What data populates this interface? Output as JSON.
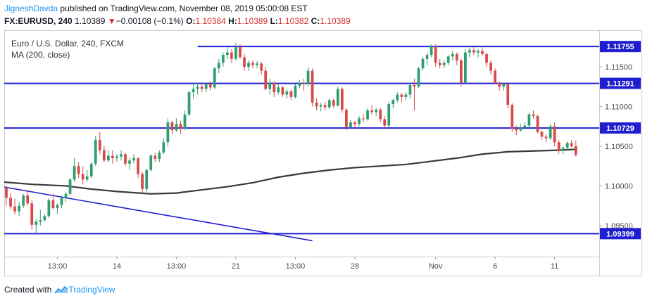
{
  "header": {
    "author": "JigneshDavda",
    "published_text": "published on TradingView.com, November 08, 2019 05:00:08 EST"
  },
  "quote": {
    "symbol": "FX:EURUSD, 240",
    "last": "1.10389",
    "arrow": "▼",
    "change": "−0.00108 (−0.1%)",
    "o_label": "O:",
    "o": "1.10384",
    "h_label": "H:",
    "h": "1.10389",
    "l_label": "L:",
    "l": "1.10382",
    "c_label": "C:",
    "c": "1.10389"
  },
  "legend": {
    "title": "Euro / U.S. Dollar, 240, FXCM",
    "indicator": "MA (200, close)"
  },
  "footer": {
    "created_with": "Created with",
    "brand": "TradingView"
  },
  "colors": {
    "up": "#2e9e6e",
    "down": "#d84a4a",
    "level": "#1f1fd1",
    "ma": "#3a3a3a",
    "text": "#131722",
    "accent": "#2196f3"
  },
  "chart_data": {
    "type": "candlestick",
    "ylim": [
      1.0911,
      1.1196
    ],
    "y_ticks": [
      "1.11500",
      "1.11000",
      "1.10500",
      "1.10000",
      "1.09500"
    ],
    "y_tick_values": [
      1.115,
      1.11,
      1.105,
      1.1,
      1.095
    ],
    "x_ticks": [
      "13:00",
      "14",
      "13:00",
      "21",
      "13:00",
      "28",
      "Nov",
      "6",
      "11"
    ],
    "x_tick_bars": [
      12,
      26,
      40,
      54,
      68,
      82,
      101,
      115,
      129
    ],
    "n_slots": 140,
    "levels": [
      {
        "value": 1.11755,
        "label": "1.11755",
        "from_bar": 45
      },
      {
        "value": 1.11291,
        "label": "1.11291",
        "from_bar": -1
      },
      {
        "value": 1.10729,
        "label": "1.10729",
        "from_bar": -1
      },
      {
        "value": 1.09399,
        "label": "1.09399",
        "from_bar": -1
      }
    ],
    "trendline": {
      "from": [
        -1,
        1.0999
      ],
      "to": [
        72,
        1.0931
      ]
    },
    "candles": [
      [
        1.0998,
        1.1,
        1.0975,
        1.0985
      ],
      [
        1.0985,
        1.0991,
        1.097,
        1.0974
      ],
      [
        1.0974,
        1.0984,
        1.0964,
        1.0968
      ],
      [
        1.0968,
        1.098,
        1.0962,
        1.0975
      ],
      [
        1.0975,
        1.099,
        1.0972,
        1.0988
      ],
      [
        1.0988,
        1.0995,
        1.0975,
        1.0978
      ],
      [
        1.0978,
        1.0982,
        1.0945,
        1.0951
      ],
      [
        1.0951,
        1.0958,
        1.094,
        1.0955
      ],
      [
        1.0955,
        1.097,
        1.095,
        1.0957
      ],
      [
        1.0957,
        1.0965,
        1.0955,
        1.0962
      ],
      [
        1.0962,
        1.0985,
        1.096,
        1.0982
      ],
      [
        1.0982,
        1.099,
        1.097,
        1.0972
      ],
      [
        1.0972,
        1.0978,
        1.0965,
        1.0976
      ],
      [
        1.0976,
        1.0988,
        1.0972,
        1.0985
      ],
      [
        1.0985,
        1.0992,
        1.098,
        1.099
      ],
      [
        1.099,
        1.101,
        1.0988,
        1.1008
      ],
      [
        1.1008,
        1.1035,
        1.1005,
        1.1025
      ],
      [
        1.1025,
        1.103,
        1.101,
        1.1015
      ],
      [
        1.1015,
        1.1025,
        1.1002,
        1.1008
      ],
      [
        1.1008,
        1.102,
        1.1005,
        1.1012
      ],
      [
        1.1012,
        1.103,
        1.101,
        1.1028
      ],
      [
        1.1028,
        1.1063,
        1.1025,
        1.1058
      ],
      [
        1.1058,
        1.1068,
        1.104,
        1.1045
      ],
      [
        1.1045,
        1.105,
        1.103,
        1.1032
      ],
      [
        1.1032,
        1.1045,
        1.103,
        1.1038
      ],
      [
        1.1038,
        1.1045,
        1.1028,
        1.1035
      ],
      [
        1.1035,
        1.104,
        1.103,
        1.1037
      ],
      [
        1.1037,
        1.1045,
        1.1032,
        1.104
      ],
      [
        1.104,
        1.1042,
        1.1025,
        1.1028
      ],
      [
        1.1028,
        1.1035,
        1.102,
        1.1032
      ],
      [
        1.1032,
        1.104,
        1.1028,
        1.1035
      ],
      [
        1.1035,
        1.1036,
        1.101,
        1.1015
      ],
      [
        1.1015,
        1.1018,
        1.099,
        1.0996
      ],
      [
        1.0996,
        1.1022,
        1.0993,
        1.102
      ],
      [
        1.102,
        1.104,
        1.1018,
        1.1038
      ],
      [
        1.1038,
        1.1042,
        1.103,
        1.1034
      ],
      [
        1.1034,
        1.1045,
        1.103,
        1.1042
      ],
      [
        1.1042,
        1.106,
        1.104,
        1.1055
      ],
      [
        1.1055,
        1.1085,
        1.105,
        1.108
      ],
      [
        1.108,
        1.1082,
        1.1065,
        1.107
      ],
      [
        1.107,
        1.1085,
        1.1068,
        1.1078
      ],
      [
        1.1078,
        1.1082,
        1.1065,
        1.1072
      ],
      [
        1.1072,
        1.1095,
        1.107,
        1.109
      ],
      [
        1.109,
        1.112,
        1.1088,
        1.1118
      ],
      [
        1.1118,
        1.1128,
        1.111,
        1.1122
      ],
      [
        1.1122,
        1.113,
        1.1115,
        1.1125
      ],
      [
        1.1125,
        1.1128,
        1.1118,
        1.1122
      ],
      [
        1.1122,
        1.113,
        1.1118,
        1.1128
      ],
      [
        1.1128,
        1.1132,
        1.112,
        1.1124
      ],
      [
        1.1124,
        1.115,
        1.1122,
        1.1148
      ],
      [
        1.1148,
        1.116,
        1.1142,
        1.1155
      ],
      [
        1.1155,
        1.1168,
        1.115,
        1.1165
      ],
      [
        1.1165,
        1.1175,
        1.116,
        1.1168
      ],
      [
        1.1168,
        1.1172,
        1.1155,
        1.116
      ],
      [
        1.116,
        1.118,
        1.1158,
        1.1175
      ],
      [
        1.1175,
        1.1178,
        1.116,
        1.1162
      ],
      [
        1.1162,
        1.1166,
        1.1145,
        1.115
      ],
      [
        1.115,
        1.1158,
        1.1145,
        1.1155
      ],
      [
        1.1155,
        1.1158,
        1.1148,
        1.1152
      ],
      [
        1.1152,
        1.1157,
        1.1148,
        1.1154
      ],
      [
        1.1154,
        1.1156,
        1.114,
        1.1145
      ],
      [
        1.1145,
        1.115,
        1.112,
        1.1122
      ],
      [
        1.1122,
        1.1135,
        1.1115,
        1.113
      ],
      [
        1.113,
        1.1132,
        1.1112,
        1.1118
      ],
      [
        1.1118,
        1.1128,
        1.1115,
        1.1124
      ],
      [
        1.1124,
        1.1126,
        1.1112,
        1.1115
      ],
      [
        1.1115,
        1.1122,
        1.111,
        1.1119
      ],
      [
        1.1119,
        1.1121,
        1.1108,
        1.1112
      ],
      [
        1.1112,
        1.1128,
        1.111,
        1.1126
      ],
      [
        1.1126,
        1.1133,
        1.1123,
        1.113
      ],
      [
        1.113,
        1.1135,
        1.112,
        1.1128
      ],
      [
        1.1128,
        1.115,
        1.1125,
        1.1145
      ],
      [
        1.1145,
        1.1148,
        1.11,
        1.1105
      ],
      [
        1.1105,
        1.111,
        1.1095,
        1.11
      ],
      [
        1.11,
        1.1105,
        1.1094,
        1.1102
      ],
      [
        1.1102,
        1.1106,
        1.1095,
        1.1099
      ],
      [
        1.1099,
        1.111,
        1.1097,
        1.1108
      ],
      [
        1.1108,
        1.111,
        1.1098,
        1.1101
      ],
      [
        1.1101,
        1.1125,
        1.11,
        1.1122
      ],
      [
        1.1122,
        1.1124,
        1.1092,
        1.1096
      ],
      [
        1.1096,
        1.1098,
        1.107,
        1.1074
      ],
      [
        1.1074,
        1.1083,
        1.1072,
        1.108
      ],
      [
        1.108,
        1.1082,
        1.1072,
        1.1078
      ],
      [
        1.1078,
        1.1088,
        1.1075,
        1.1085
      ],
      [
        1.1085,
        1.109,
        1.108,
        1.1084
      ],
      [
        1.1084,
        1.1098,
        1.1082,
        1.1095
      ],
      [
        1.1095,
        1.1102,
        1.109,
        1.1093
      ],
      [
        1.1093,
        1.1098,
        1.1088,
        1.1096
      ],
      [
        1.1096,
        1.1098,
        1.108,
        1.1084
      ],
      [
        1.1084,
        1.1088,
        1.1072,
        1.1076
      ],
      [
        1.1076,
        1.1106,
        1.1074,
        1.1103
      ],
      [
        1.1103,
        1.111,
        1.1098,
        1.1108
      ],
      [
        1.1108,
        1.1118,
        1.1105,
        1.1115
      ],
      [
        1.1115,
        1.1117,
        1.1105,
        1.1112
      ],
      [
        1.1112,
        1.1118,
        1.1108,
        1.1115
      ],
      [
        1.1115,
        1.113,
        1.111,
        1.1127
      ],
      [
        1.1127,
        1.1135,
        1.1095,
        1.1125
      ],
      [
        1.1125,
        1.115,
        1.1123,
        1.1148
      ],
      [
        1.1148,
        1.1162,
        1.1145,
        1.116
      ],
      [
        1.116,
        1.1168,
        1.1152,
        1.1165
      ],
      [
        1.1165,
        1.1178,
        1.1162,
        1.1176
      ],
      [
        1.1176,
        1.1178,
        1.115,
        1.1155
      ],
      [
        1.1155,
        1.116,
        1.1148,
        1.1152
      ],
      [
        1.1152,
        1.1158,
        1.1148,
        1.1155
      ],
      [
        1.1155,
        1.1165,
        1.1152,
        1.1163
      ],
      [
        1.1163,
        1.117,
        1.1158,
        1.1166
      ],
      [
        1.1166,
        1.1168,
        1.1152,
        1.1158
      ],
      [
        1.1158,
        1.116,
        1.1125,
        1.113
      ],
      [
        1.113,
        1.1172,
        1.1128,
        1.1168
      ],
      [
        1.1168,
        1.1174,
        1.1162,
        1.1171
      ],
      [
        1.1171,
        1.1175,
        1.1165,
        1.1168
      ],
      [
        1.1168,
        1.1172,
        1.1162,
        1.117
      ],
      [
        1.117,
        1.1176,
        1.1164,
        1.1166
      ],
      [
        1.1166,
        1.1168,
        1.115,
        1.1155
      ],
      [
        1.1155,
        1.1158,
        1.114,
        1.1145
      ],
      [
        1.1145,
        1.1148,
        1.1128,
        1.113
      ],
      [
        1.113,
        1.1132,
        1.112,
        1.1125
      ],
      [
        1.1125,
        1.113,
        1.112,
        1.1128
      ],
      [
        1.1128,
        1.113,
        1.1098,
        1.1102
      ],
      [
        1.1102,
        1.1104,
        1.1068,
        1.1072
      ],
      [
        1.1072,
        1.1076,
        1.1064,
        1.107
      ],
      [
        1.107,
        1.1078,
        1.1068,
        1.1074
      ],
      [
        1.1074,
        1.108,
        1.1072,
        1.1076
      ],
      [
        1.1076,
        1.1092,
        1.1074,
        1.109
      ],
      [
        1.109,
        1.1095,
        1.1085,
        1.1088
      ],
      [
        1.1088,
        1.109,
        1.1066,
        1.1068
      ],
      [
        1.1068,
        1.107,
        1.1058,
        1.1062
      ],
      [
        1.1062,
        1.1065,
        1.1055,
        1.106
      ],
      [
        1.106,
        1.1078,
        1.1058,
        1.1075
      ],
      [
        1.1075,
        1.108,
        1.105,
        1.1055
      ],
      [
        1.1055,
        1.1058,
        1.104,
        1.1044
      ],
      [
        1.1044,
        1.105,
        1.104,
        1.1048
      ],
      [
        1.1048,
        1.1056,
        1.1045,
        1.1054
      ],
      [
        1.1054,
        1.1058,
        1.1048,
        1.105
      ],
      [
        1.105,
        1.1057,
        1.1037,
        1.1039
      ]
    ],
    "ma": [
      [
        -1,
        1.1005
      ],
      [
        6,
        1.1002
      ],
      [
        14,
        1.1
      ],
      [
        20,
        1.0996
      ],
      [
        26,
        1.0993
      ],
      [
        34,
        1.099
      ],
      [
        40,
        1.0991
      ],
      [
        46,
        1.0995
      ],
      [
        52,
        1.0999
      ],
      [
        58,
        1.1004
      ],
      [
        64,
        1.1011
      ],
      [
        70,
        1.1016
      ],
      [
        76,
        1.102
      ],
      [
        82,
        1.1023
      ],
      [
        88,
        1.1025
      ],
      [
        94,
        1.1027
      ],
      [
        100,
        1.1031
      ],
      [
        106,
        1.1035
      ],
      [
        112,
        1.104
      ],
      [
        118,
        1.1043
      ],
      [
        124,
        1.1044
      ],
      [
        130,
        1.1045
      ],
      [
        134,
        1.1046
      ]
    ]
  }
}
